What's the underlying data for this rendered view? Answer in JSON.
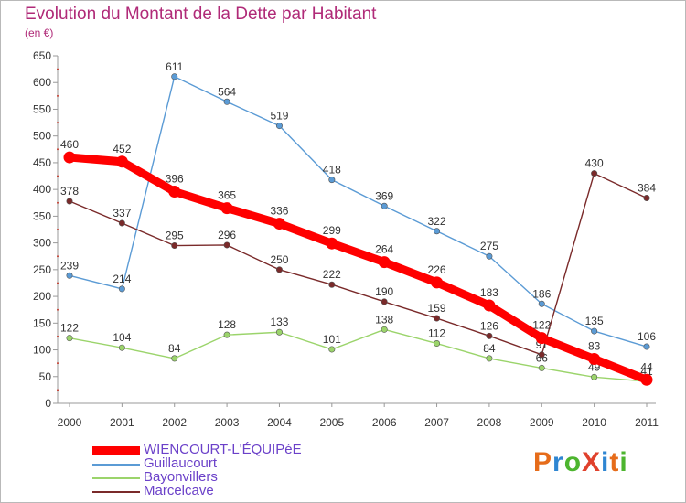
{
  "title": "Evolution du Montant de la Dette par Habitant",
  "subtitle": "(en €)",
  "logo": {
    "text": "ProXiti",
    "colors": [
      "#e66c1a",
      "#2f86d2",
      "#4db52f",
      "#e0412c",
      "#2f86d2",
      "#e66c1a",
      "#4db52f"
    ]
  },
  "chart_data": {
    "type": "line",
    "title": "Evolution du Montant de la Dette par Habitant",
    "subtitle": "(en €)",
    "categories": [
      "2000",
      "2001",
      "2002",
      "2003",
      "2004",
      "2005",
      "2006",
      "2007",
      "2008",
      "2009",
      "2010",
      "2011"
    ],
    "ylim": [
      0,
      650
    ],
    "yticks": [
      "0",
      "50",
      "100",
      "150",
      "200",
      "250",
      "300",
      "350",
      "400",
      "450",
      "500",
      "550",
      "600",
      "650"
    ],
    "grid": false,
    "legend_position": "bottom-left",
    "series": [
      {
        "name": "WIENCOURT-L'ÉQUIPéE",
        "color": "#ff0000",
        "values": [
          460,
          452,
          396,
          365,
          336,
          299,
          264,
          226,
          183,
          122,
          83,
          44
        ],
        "labels": [
          "460",
          "452",
          "396",
          "365",
          "336",
          "299",
          "264",
          "226",
          "183",
          "122",
          "83",
          "44"
        ]
      },
      {
        "name": "Guillaucourt",
        "color": "#5b9bd5",
        "values": [
          239,
          214,
          611,
          564,
          519,
          418,
          369,
          322,
          275,
          186,
          135,
          106
        ],
        "labels": [
          "239",
          "214",
          "611",
          "564",
          "519",
          "418",
          "369",
          "322",
          "275",
          "186",
          "135",
          "106"
        ]
      },
      {
        "name": "Bayonvillers",
        "color": "#9bd46b",
        "values": [
          122,
          104,
          84,
          128,
          133,
          101,
          138,
          112,
          84,
          66,
          49,
          41
        ],
        "labels": [
          "122",
          "104",
          "84",
          "128",
          "133",
          "101",
          "138",
          "112",
          "84",
          "66",
          "49",
          "41"
        ]
      },
      {
        "name": "Marcelcave",
        "color": "#7a2a2a",
        "values": [
          378,
          337,
          295,
          296,
          250,
          222,
          190,
          159,
          126,
          91,
          430,
          384
        ],
        "labels": [
          "378",
          "337",
          "295",
          "296",
          "250",
          "222",
          "190",
          "159",
          "126",
          "91",
          "430",
          "384"
        ]
      }
    ]
  }
}
